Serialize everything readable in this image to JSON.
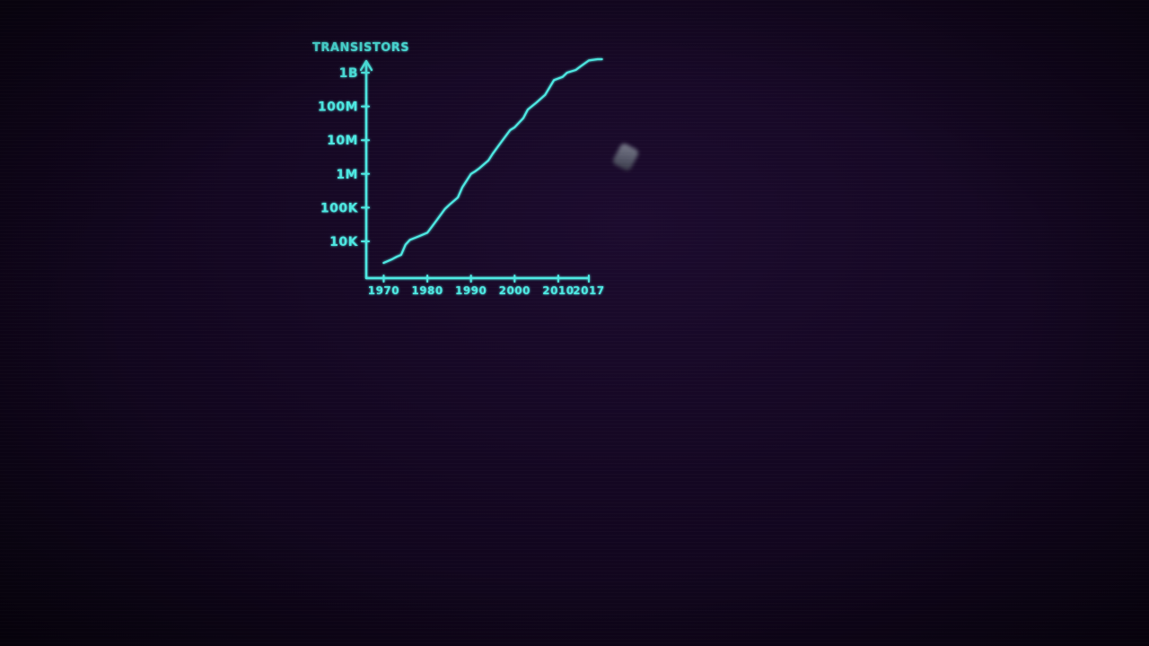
{
  "colors": {
    "chalk": "#4ee8e2",
    "background": "#14071f"
  },
  "icons": {
    "eraser": "eraser-icon"
  },
  "chart_data": {
    "type": "line",
    "title": "",
    "xlabel": "",
    "ylabel": "TRANSISTORS",
    "yscale": "log",
    "xlim": [
      1966,
      2024
    ],
    "ylim": [
      1000,
      2000000000
    ],
    "x_tick_labels": [
      "1970",
      "1980",
      "1990",
      "2000",
      "2010",
      "2017"
    ],
    "y_tick_labels": [
      "10K",
      "100K",
      "1M",
      "10M",
      "100M",
      "1B"
    ],
    "series": [
      {
        "x": [
          1970,
          1972,
          1973,
          1974,
          1975,
          1976,
          1978,
          1980,
          1982,
          1984,
          1985,
          1987,
          1988,
          1990,
          1991,
          1992,
          1994,
          1995,
          1997,
          1999,
          2000,
          2002,
          2003,
          2005,
          2007,
          2009,
          2011,
          2012,
          2014,
          2015,
          2017,
          2019,
          2020
        ],
        "y": [
          2300,
          3000,
          3500,
          4000,
          8000,
          11000,
          14000,
          18000,
          40000,
          90000,
          120000,
          200000,
          400000,
          1000000,
          1200000,
          1500000,
          2500000,
          4000000,
          9000000,
          20000000,
          24000000,
          45000000,
          80000000,
          130000000,
          220000000,
          600000000,
          750000000,
          1000000000,
          1200000000,
          1500000000,
          2300000000,
          2500000000,
          2500000000
        ]
      }
    ]
  }
}
